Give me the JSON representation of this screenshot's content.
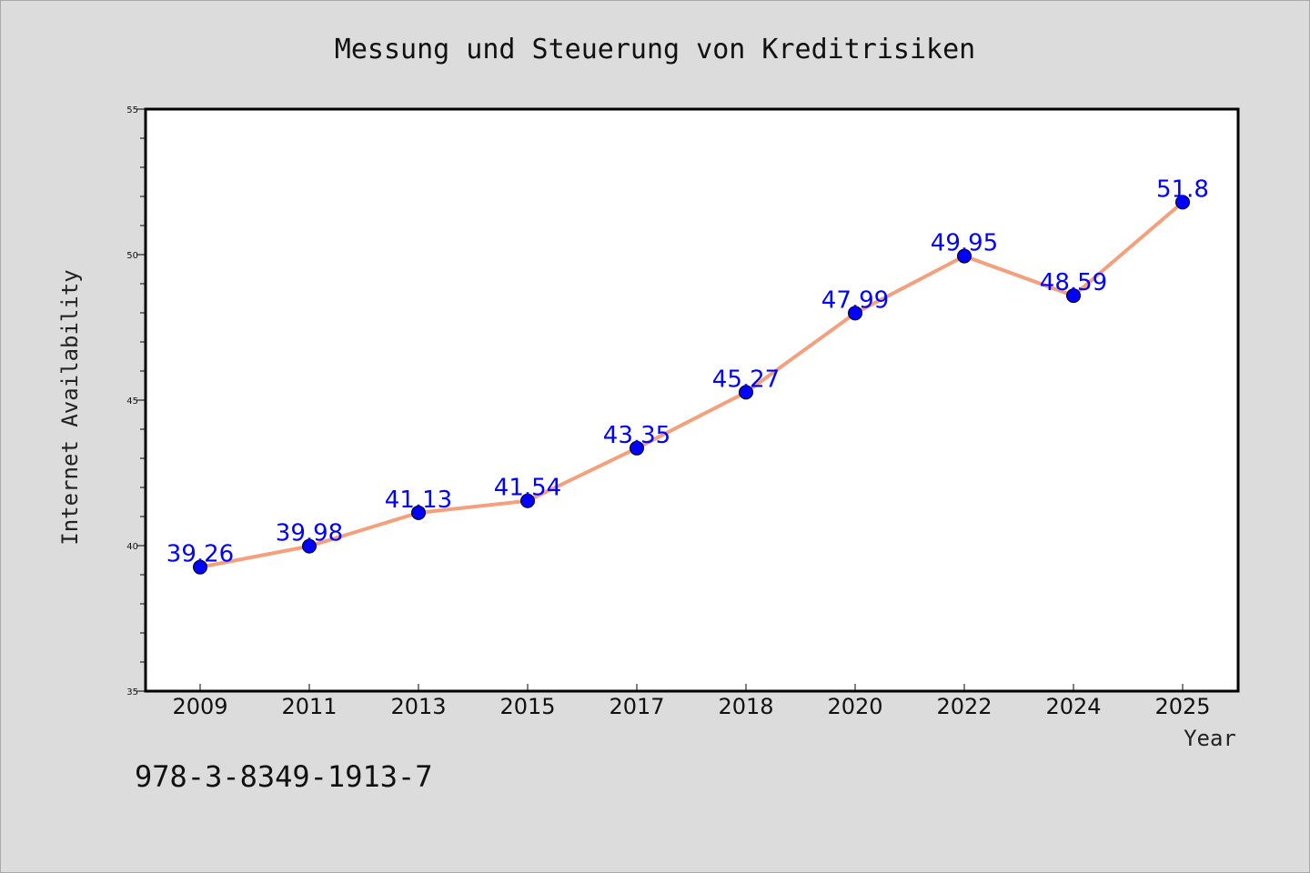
{
  "chart_data": {
    "type": "line",
    "title": "Messung und Steuerung von Kreditrisiken",
    "xlabel": "Year",
    "ylabel": "Internet Availability",
    "categories": [
      "2009",
      "2011",
      "2013",
      "2015",
      "2017",
      "2018",
      "2020",
      "2022",
      "2024",
      "2025"
    ],
    "series": [
      {
        "values": [
          39.26,
          39.98,
          41.13,
          41.54,
          43.35,
          45.27,
          47.99,
          49.95,
          48.59,
          51.8
        ],
        "labels": [
          "39.26",
          "39.98",
          "41.13",
          "41.54",
          "43.35",
          "45.27",
          "47.99",
          "49.95",
          "48.59",
          "51.8"
        ],
        "line_color": "#f4a07c",
        "marker_color": "#0000ff"
      }
    ],
    "ylim": [
      35,
      55
    ],
    "yticks": [
      "35",
      "40",
      "45",
      "50",
      "55"
    ],
    "grid": false,
    "legend": "none"
  },
  "footnote": "978-3-8349-1913-7",
  "colors": {
    "background": "#dcdcdc",
    "plot_background": "#ffffff",
    "axis": "#000000"
  }
}
